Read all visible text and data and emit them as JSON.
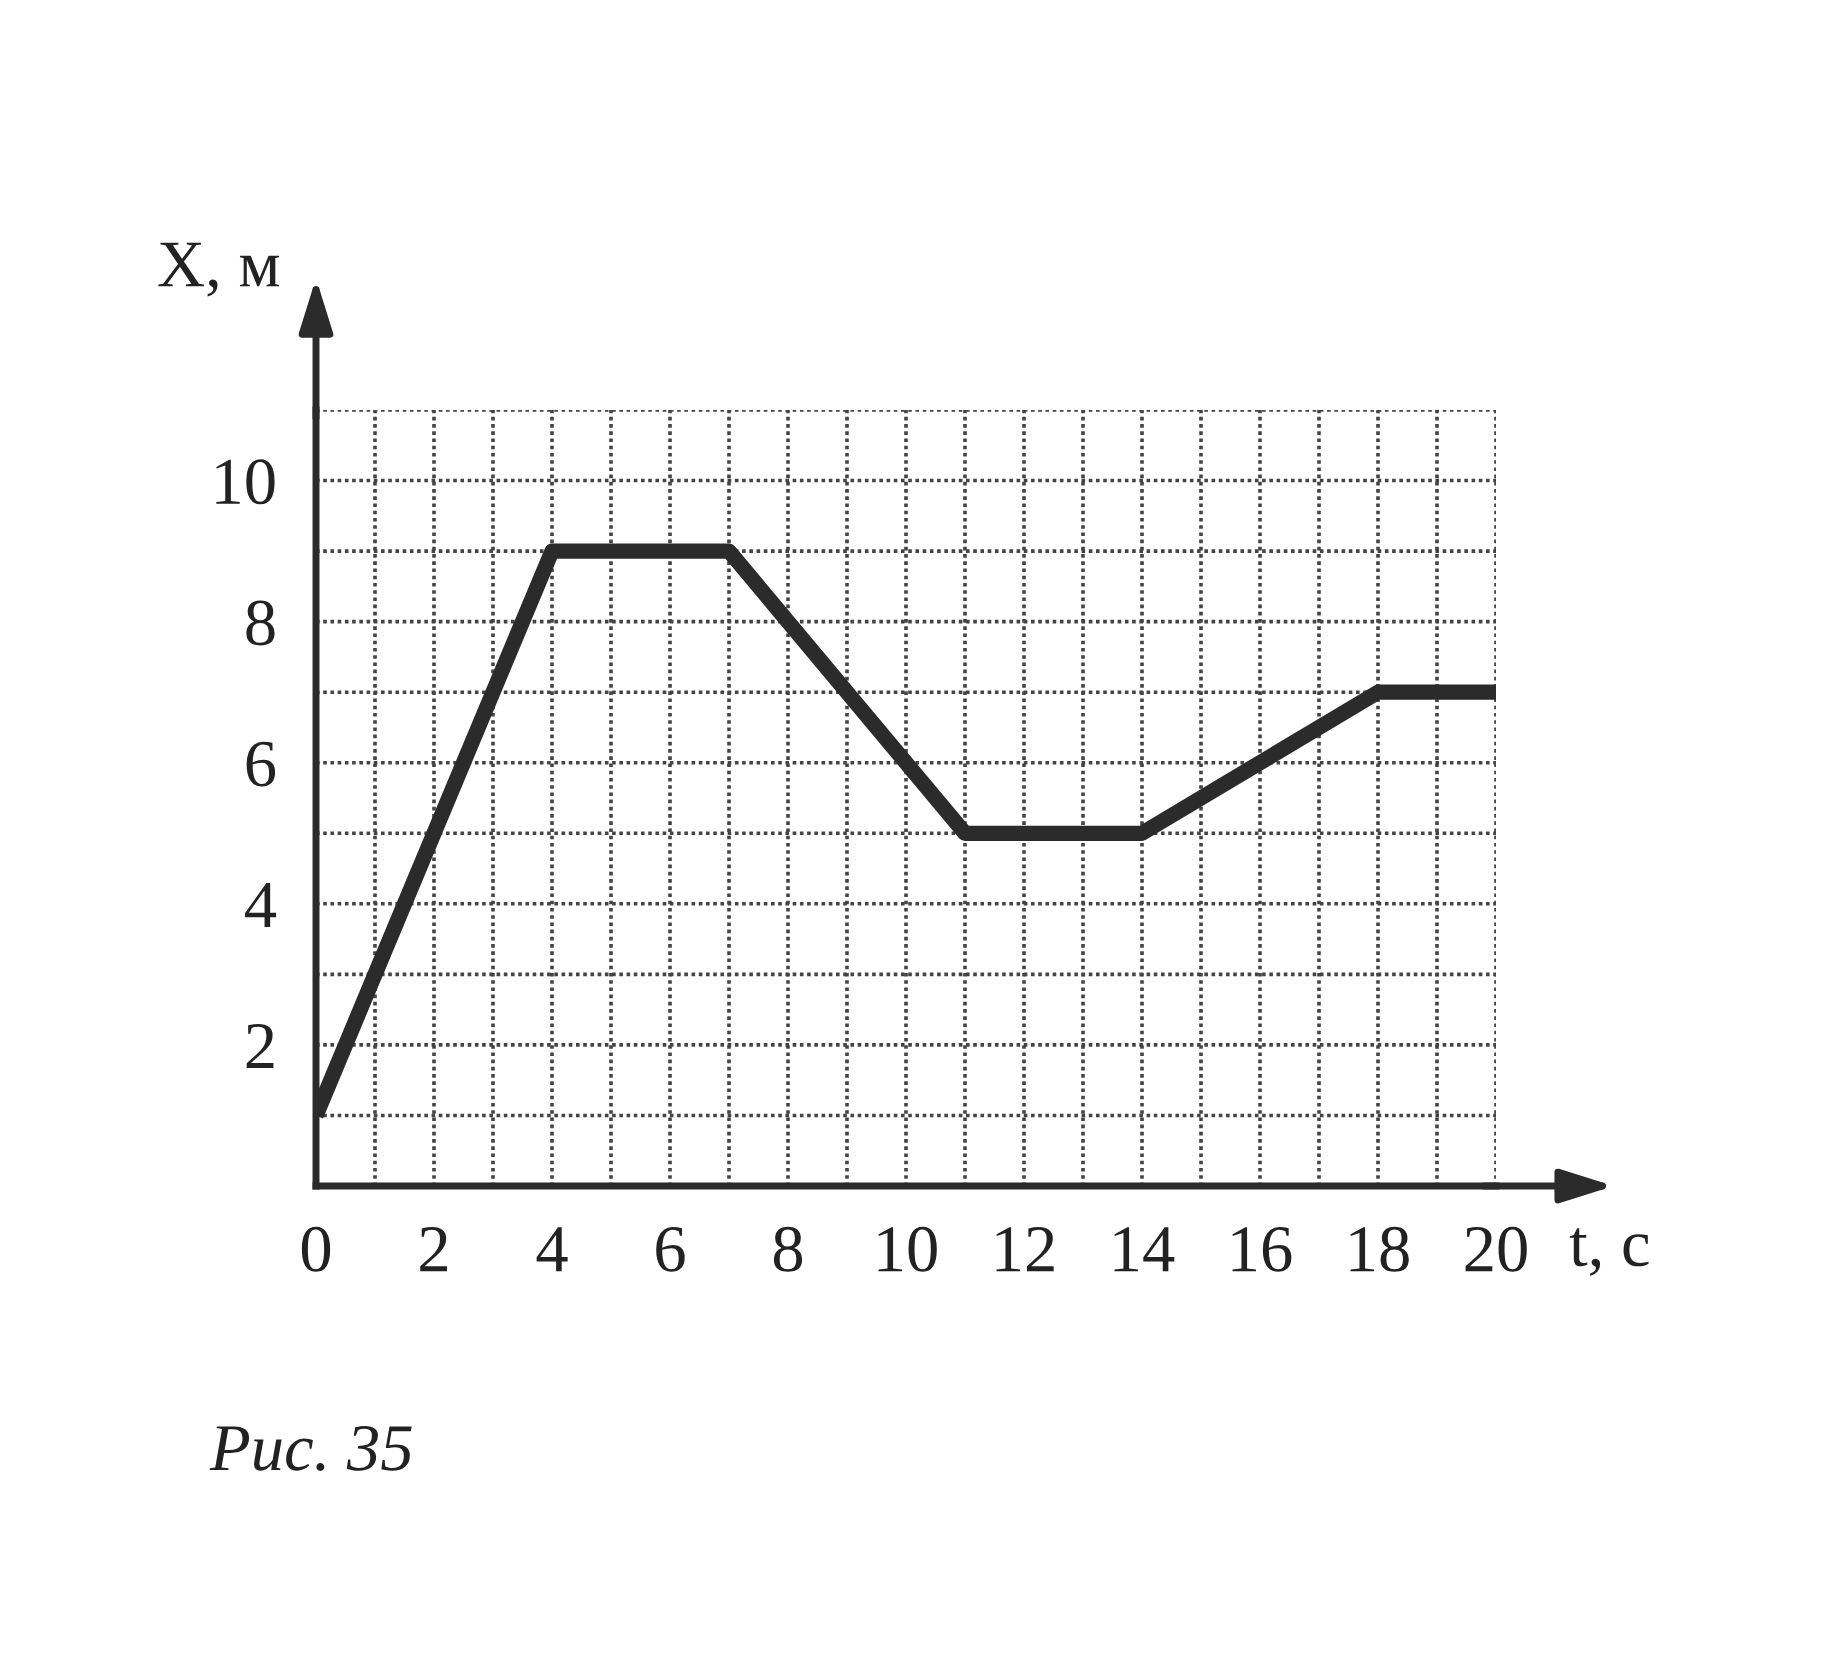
{
  "chart_data": {
    "type": "line",
    "xlabel": "t, с",
    "ylabel": "X, м",
    "x": [
      0,
      4,
      7,
      11,
      14,
      18,
      20
    ],
    "series": [
      {
        "color": "#2b2b2b",
        "values": [
          1,
          9,
          9,
          5,
          5,
          7,
          7
        ]
      }
    ],
    "xlim": [
      0,
      20
    ],
    "ylim": [
      0,
      11
    ],
    "xticks": [
      0,
      {
        "value": 1,
        "label": null
      },
      2,
      {
        "value": 3,
        "label": null
      },
      4,
      {
        "value": 5,
        "label": null
      },
      6,
      {
        "value": 7,
        "label": null
      },
      8,
      {
        "value": 9,
        "label": null
      },
      10,
      {
        "value": 11,
        "label": null
      },
      12,
      {
        "value": 13,
        "label": null
      },
      14,
      {
        "value": 15,
        "label": null
      },
      16,
      {
        "value": 17,
        "label": null
      },
      18,
      {
        "value": 19,
        "label": null
      },
      20
    ],
    "yticks": [
      {
        "value": 1,
        "label": null
      },
      2,
      {
        "value": 3,
        "label": null
      },
      4,
      {
        "value": 5,
        "label": null
      },
      6,
      {
        "value": 7,
        "label": null
      },
      8,
      {
        "value": 9,
        "label": null
      },
      10,
      {
        "value": 11,
        "label": null
      }
    ],
    "grid": true,
    "line_style": "solid",
    "annotations": [
      "Рис. 35"
    ]
  }
}
